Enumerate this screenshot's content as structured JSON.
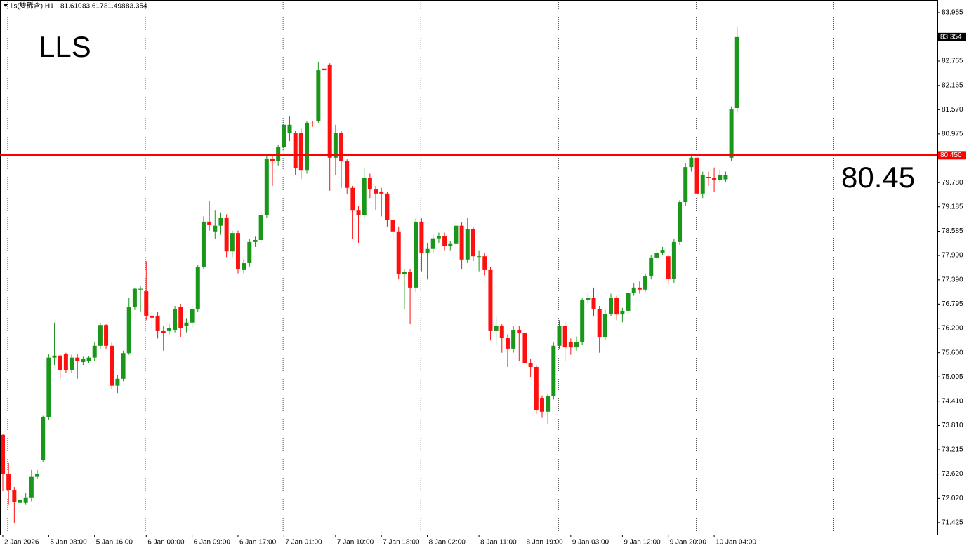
{
  "chart_data": {
    "type": "candlestick",
    "symbol": "lls(雙稀含),H1",
    "ohlc_labels": [
      "81.610",
      "83.617",
      "81.498",
      "83.354"
    ],
    "annotations": [
      "LLS",
      "80.45"
    ],
    "hline": {
      "value": 80.45,
      "label": "80.450",
      "color": "#ff0000"
    },
    "up_color": "#1a961a",
    "down_color": "#ff1010",
    "grid": true,
    "ylim": [
      71.13,
      84.265
    ],
    "yticks": [
      83.955,
      82.765,
      82.165,
      {
        "value": 81.57,
        "label": "81.570"
      },
      80.975,
      {
        "value": 79.78,
        "label": "79.780"
      },
      79.185,
      78.585,
      {
        "value": 77.99,
        "label": "77.990"
      },
      {
        "value": 77.39,
        "label": "77.390"
      },
      76.795,
      {
        "value": 76.2,
        "label": "76.200"
      },
      {
        "value": 75.6,
        "label": "75.600"
      },
      75.005,
      {
        "value": 74.41,
        "label": "74.410"
      },
      {
        "value": 73.81,
        "label": "73.810"
      },
      73.215,
      {
        "value": 72.62,
        "label": "72.620"
      },
      {
        "value": 72.02,
        "label": "72.020"
      },
      71.425
    ],
    "categories": [
      "2 Jan 2026",
      null,
      null,
      null,
      null,
      null,
      null,
      null,
      "5 Jan 08:00",
      null,
      null,
      null,
      null,
      null,
      null,
      null,
      "5 Jan 16:00",
      null,
      null,
      null,
      null,
      null,
      null,
      null,
      null,
      "6 Jan 00:00",
      null,
      null,
      null,
      null,
      null,
      null,
      null,
      "6 Jan 09:00",
      null,
      null,
      null,
      null,
      null,
      null,
      null,
      "6 Jan 17:00",
      null,
      null,
      null,
      null,
      null,
      null,
      null,
      "7 Jan 01:00",
      null,
      null,
      null,
      null,
      null,
      null,
      null,
      null,
      "7 Jan 10:00",
      null,
      null,
      null,
      null,
      null,
      null,
      null,
      "7 Jan 18:00",
      null,
      null,
      null,
      null,
      null,
      null,
      null,
      "8 Jan 02:00",
      null,
      null,
      null,
      null,
      null,
      null,
      null,
      null,
      "8 Jan 11:00",
      null,
      null,
      null,
      null,
      null,
      null,
      null,
      "8 Jan 19:00",
      null,
      null,
      null,
      null,
      null,
      null,
      null,
      "9 Jan 03:00",
      null,
      null,
      null,
      null,
      null,
      null,
      null,
      null,
      "9 Jan 12:00",
      null,
      null,
      null,
      null,
      null,
      null,
      null,
      "9 Jan 20:00",
      null,
      null,
      null,
      null,
      null,
      null,
      null,
      "10 Jan 04:00",
      null,
      null,
      null,
      null
    ],
    "open": [
      73.58,
      72.63,
      72.23,
      71.91,
      71.91,
      72.03,
      72.55,
      72.96,
      74.01,
      75.48,
      75.53,
      75.56,
      75.18,
      75.48,
      75.37,
      75.39,
      75.48,
      75.77,
      76.28,
      75.77,
      74.79,
      74.96,
      75.59,
      76.73,
      77.15,
      77.11,
      76.51,
      76.51,
      76.13,
      76.13,
      76.16,
      76.73,
      76.25,
      76.34,
      76.68,
      77.71,
      78.82,
      78.58,
      78.72,
      78.92,
      78.09,
      78.54,
      77.63,
      77.8,
      78.32,
      78.37,
      78.99,
      80.37,
      80.3,
      80.65,
      80.99,
      80.99,
      80.99,
      80.09,
      81.25,
      81.3,
      82.58,
      82.68,
      80.39,
      80.99,
      80.3,
      79.65,
      79.09,
      78.99,
      79.9,
      79.61,
      79.56,
      79.51,
      78.87,
      78.58,
      77.54,
      77.58,
      77.2,
      78.82,
      78.06,
      78.15,
      78.41,
      78.46,
      78.23,
      78.27,
      78.72,
      77.89,
      78.63,
      77.97,
      77.97,
      77.63,
      76.13,
      76.25,
      75.96,
      75.7,
      76.16,
      76.08,
      75.35,
      75.25,
      74.49,
      74.15,
      74.53,
      75.77,
      76.25,
      75.87,
      75.73,
      75.87,
      76.9,
      76.94,
      76.68,
      75.99,
      76.56,
      76.94,
      76.54,
      76.63,
      77.06,
      77.2,
      77.15,
      77.49,
      77.94,
      78.06,
      77.97,
      77.41,
      78.32,
      79.3,
      80.16,
      80.39,
      79.51,
      79.92,
      79.9,
      79.84,
      79.86,
      80.39,
      81.61
    ],
    "high": [
      73.6,
      72.89,
      72.3,
      72.1,
      72.15,
      72.72,
      72.72,
      74.05,
      75.56,
      76.34,
      75.56,
      75.6,
      75.55,
      75.56,
      75.5,
      75.52,
      75.85,
      76.34,
      76.3,
      75.85,
      75.05,
      75.65,
      76.94,
      77.2,
      77.25,
      77.85,
      76.6,
      76.6,
      76.25,
      76.3,
      76.75,
      76.8,
      76.45,
      76.75,
      77.75,
      78.95,
      79.32,
      79.09,
      79.05,
      79.0,
      78.6,
      78.6,
      77.9,
      78.4,
      78.45,
      79.05,
      80.45,
      80.45,
      80.7,
      81.3,
      81.4,
      81.05,
      81.1,
      81.3,
      81.3,
      82.75,
      82.68,
      82.71,
      81.2,
      81.05,
      80.35,
      79.7,
      79.2,
      80.13,
      80.0,
      79.7,
      79.65,
      79.56,
      78.95,
      78.7,
      77.65,
      77.65,
      78.9,
      78.9,
      78.3,
      78.5,
      78.55,
      78.55,
      78.35,
      78.82,
      78.8,
      78.92,
      78.7,
      78.1,
      78.05,
      77.7,
      76.5,
      76.3,
      76.05,
      76.25,
      76.25,
      76.15,
      75.45,
      75.3,
      74.55,
      74.6,
      75.85,
      76.4,
      76.35,
      75.95,
      76.0,
      76.95,
      77.05,
      77.2,
      76.75,
      76.65,
      77.05,
      77.0,
      76.7,
      77.15,
      77.3,
      77.35,
      77.55,
      78.0,
      78.15,
      78.2,
      78.0,
      78.4,
      79.35,
      80.25,
      80.45,
      80.45,
      80.05,
      80.05,
      80.15,
      80.1,
      80.05,
      81.65,
      83.617
    ],
    "low": [
      72.2,
      71.86,
      71.42,
      71.45,
      71.86,
      71.95,
      72.5,
      72.92,
      73.95,
      75.3,
      74.96,
      75.1,
      75.1,
      74.96,
      75.3,
      75.35,
      75.4,
      75.7,
      75.7,
      74.7,
      74.61,
      74.9,
      75.55,
      76.65,
      76.6,
      76.4,
      76.2,
      75.95,
      75.65,
      76.05,
      76.1,
      75.99,
      76.1,
      76.2,
      76.6,
      77.65,
      78.6,
      78.4,
      78.5,
      77.95,
      77.95,
      77.55,
      77.55,
      77.7,
      78.2,
      78.3,
      78.92,
      79.7,
      80.2,
      80.5,
      80.8,
      79.96,
      79.87,
      80.0,
      81.15,
      81.25,
      82.4,
      79.58,
      79.96,
      79.65,
      79.5,
      78.4,
      78.3,
      78.9,
      79.4,
      79.1,
      78.95,
      78.7,
      78.4,
      77.4,
      76.68,
      76.3,
      77.1,
      77.6,
      77.4,
      78.05,
      78.3,
      78.1,
      78.1,
      78.15,
      77.65,
      77.8,
      77.85,
      77.6,
      77.5,
      75.9,
      75.8,
      75.6,
      75.25,
      75.6,
      75.4,
      75.2,
      75.0,
      74.1,
      74.0,
      73.85,
      74.45,
      75.7,
      75.4,
      75.55,
      75.65,
      75.8,
      76.8,
      76.5,
      75.6,
      75.9,
      76.5,
      76.4,
      76.35,
      76.55,
      77.0,
      77.05,
      77.1,
      77.4,
      77.9,
      78.0,
      77.3,
      77.3,
      78.25,
      79.2,
      80.05,
      79.35,
      79.4,
      79.7,
      79.55,
      79.8,
      79.8,
      80.3,
      81.498
    ],
    "close": [
      72.63,
      72.23,
      71.94,
      71.99,
      72.03,
      72.55,
      72.63,
      74.01,
      75.48,
      75.53,
      75.18,
      75.18,
      75.48,
      75.39,
      75.44,
      75.48,
      75.77,
      76.28,
      75.77,
      74.79,
      74.96,
      75.59,
      76.73,
      77.17,
      77.17,
      76.51,
      76.46,
      76.13,
      76.08,
      76.2,
      76.68,
      76.2,
      76.34,
      76.68,
      77.71,
      78.82,
      78.75,
      78.72,
      78.92,
      78.09,
      78.54,
      77.65,
      77.8,
      78.32,
      78.37,
      78.99,
      80.37,
      80.3,
      80.65,
      81.2,
      81.2,
      80.13,
      80.09,
      81.25,
      81.23,
      82.54,
      82.54,
      80.39,
      80.99,
      80.3,
      79.65,
      79.09,
      78.99,
      79.9,
      79.61,
      79.51,
      79.51,
      78.87,
      78.58,
      77.54,
      77.58,
      77.2,
      78.82,
      78.06,
      78.15,
      78.41,
      78.46,
      78.23,
      78.27,
      78.72,
      77.89,
      78.63,
      77.97,
      77.97,
      77.63,
      76.13,
      76.25,
      75.96,
      75.7,
      76.16,
      76.08,
      75.35,
      75.25,
      74.18,
      74.15,
      74.53,
      75.77,
      76.25,
      75.73,
      75.73,
      75.87,
      76.9,
      76.94,
      76.68,
      75.99,
      76.56,
      76.94,
      76.54,
      76.63,
      77.06,
      77.2,
      77.15,
      77.49,
      77.94,
      78.06,
      78.11,
      77.41,
      78.32,
      79.3,
      80.16,
      80.39,
      79.51,
      79.96,
      79.9,
      79.84,
      79.96,
      79.96,
      81.59,
      83.354
    ]
  }
}
